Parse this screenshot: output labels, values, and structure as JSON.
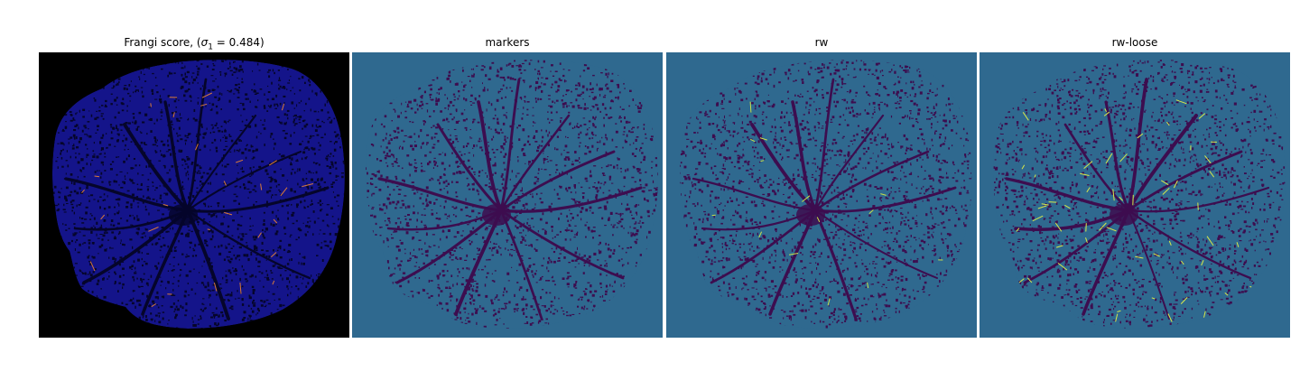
{
  "panels": [
    {
      "title_prefix": "Frangi score, (",
      "title_sigma": "σ",
      "title_sub": "1",
      "title_suffix": " = 0.484)",
      "background": "#000000",
      "fundus_color": "#14148a",
      "vessel_color": "#05052a",
      "highlight_color": "#d97a3a"
    },
    {
      "title": "markers",
      "background": "#2f698f",
      "fundus_color": "#2f698f",
      "vessel_color": "#3d0d4f",
      "highlight_color": "#2f698f"
    },
    {
      "title": "rw",
      "background": "#2f698f",
      "fundus_color": "#2f698f",
      "vessel_color": "#3d0d4f",
      "highlight_color": "#c8e04a"
    },
    {
      "title": "rw-loose",
      "background": "#2f698f",
      "fundus_color": "#2f698f",
      "vessel_color": "#3d0d4f",
      "highlight_color": "#d8e84a"
    }
  ]
}
